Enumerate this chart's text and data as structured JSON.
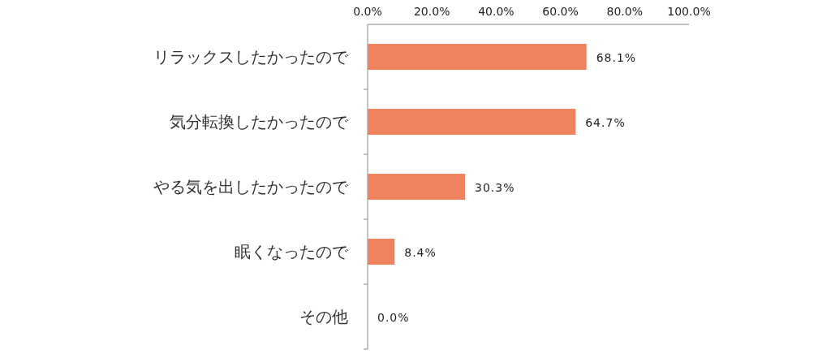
{
  "chart_data": {
    "type": "bar",
    "orientation": "horizontal",
    "categories": [
      "リラックスしたかったので",
      "気分転換したかったので",
      "やる気を出したかったので",
      "眠くなったので",
      "その他"
    ],
    "values": [
      68.1,
      64.7,
      30.3,
      8.4,
      0.0
    ],
    "value_labels": [
      "68.1%",
      "64.7%",
      "30.3%",
      "8.4%",
      "0.0%"
    ],
    "color": "#ef8360",
    "xlim": [
      0,
      100
    ],
    "xticks": [
      {
        "value": 0,
        "label": "0.0%"
      },
      {
        "value": 20,
        "label": "20.0%"
      },
      {
        "value": 40,
        "label": "40.0%"
      },
      {
        "value": 60,
        "label": "60.0%"
      },
      {
        "value": 80,
        "label": "80.0%"
      },
      {
        "value": 100,
        "label": "100.0%"
      }
    ],
    "grid": false
  }
}
